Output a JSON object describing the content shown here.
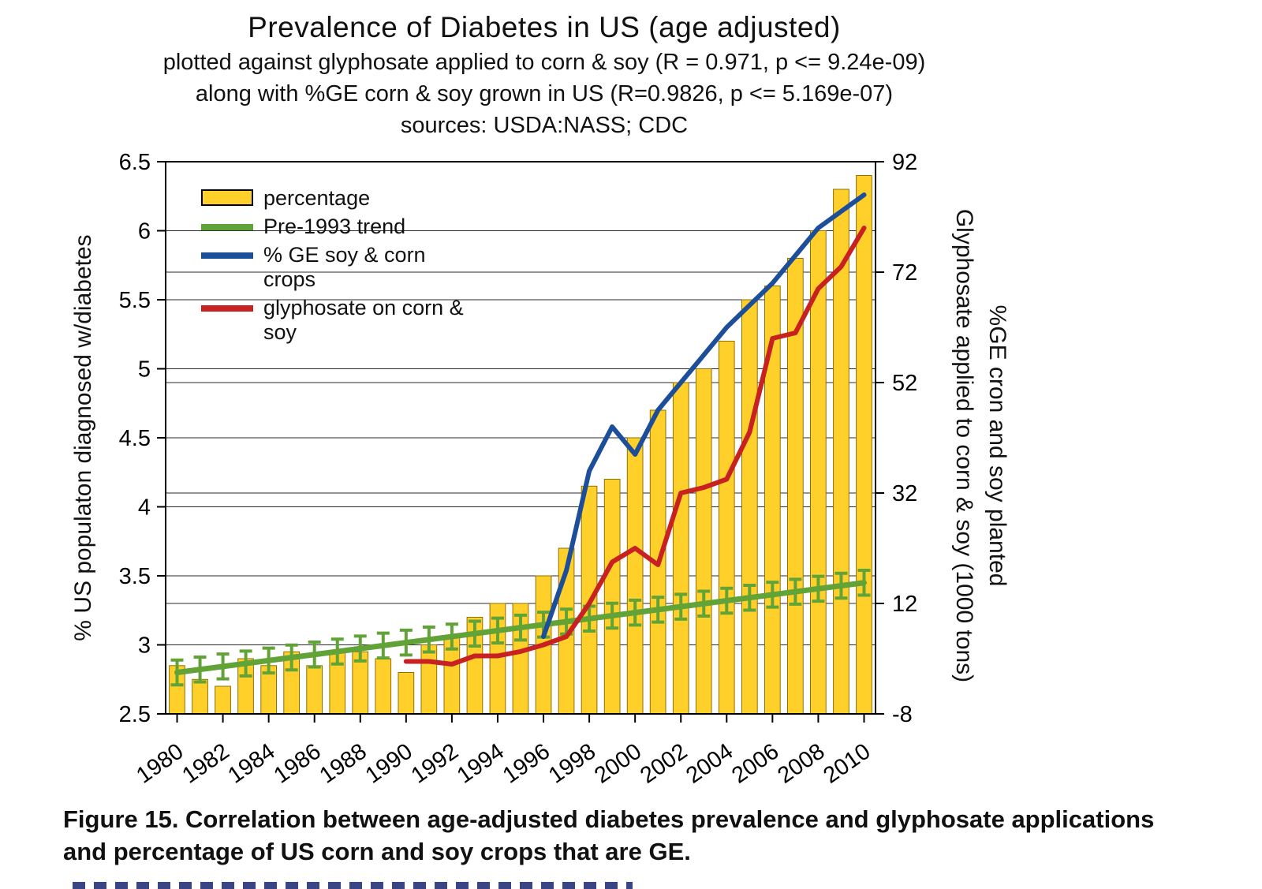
{
  "figure": {
    "title": "Prevalence of Diabetes in US (age adjusted)",
    "subtitle_line1": "plotted against glyphosate applied to corn & soy (R = 0.971, p <= 9.24e-09)",
    "subtitle_line2": "along with %GE corn & soy grown in US (R=0.9826, p <= 5.169e-07)",
    "subtitle_line3": "sources: USDA:NASS; CDC",
    "caption_line1": "Figure 15. Correlation between age-adjusted diabetes prevalence and glyphosate applications",
    "caption_line2": "and percentage of US corn and soy crops that are GE."
  },
  "axes": {
    "left_label": "% US populaton diagnosed w/diabetes",
    "right_label_outer": "Glyphosate applied to corn & soy (1000 tons)",
    "right_label_inner": "%GE cron and soy planted",
    "left_ticks": [
      "2.5",
      "3",
      "3.5",
      "4",
      "4.5",
      "5",
      "5.5",
      "6",
      "6.5"
    ],
    "right_ticks": [
      "-8",
      "12",
      "32",
      "52",
      "72",
      "92"
    ],
    "x_ticks": [
      "1980",
      "1982",
      "1984",
      "1986",
      "1988",
      "1990",
      "1992",
      "1994",
      "1996",
      "1998",
      "2000",
      "2002",
      "2004",
      "2006",
      "2008",
      "2010"
    ]
  },
  "legend": {
    "items": [
      {
        "label": "percentage",
        "swatch": "box",
        "color": "#FFD02A"
      },
      {
        "label": "Pre-1993 trend",
        "swatch": "line",
        "color": "#62A338"
      },
      {
        "label": "% GE soy & corn crops",
        "swatch": "line",
        "color": "#1C4E99"
      },
      {
        "label": "glyphosate on corn & soy",
        "swatch": "line",
        "color": "#C82121"
      }
    ]
  },
  "chart_data": {
    "type": "bar",
    "title": "Prevalence of Diabetes in US (age adjusted)",
    "sources": "USDA:NASS; CDC",
    "grid": true,
    "legend_position": "upper-left",
    "stats": [
      {
        "pair": "diabetes vs glyphosate applied to corn & soy",
        "R": 0.971,
        "p": "<= 9.24e-09"
      },
      {
        "pair": "diabetes vs %GE corn & soy grown in US",
        "R": 0.9826,
        "p": "<= 5.169e-07"
      }
    ],
    "left_axis": {
      "label": "% US populaton diagnosed w/diabetes",
      "ylim": [
        2.5,
        6.5
      ],
      "ticks": [
        2.5,
        3,
        3.5,
        4,
        4.5,
        5,
        5.5,
        6,
        6.5
      ]
    },
    "right_axis": {
      "label": "Glyphosate applied to corn & soy (1000 tons); %GE cron and soy planted",
      "ylim": [
        -8,
        92
      ],
      "ticks": [
        -8,
        12,
        32,
        52,
        72,
        92
      ]
    },
    "categories": [
      1980,
      1981,
      1982,
      1983,
      1984,
      1985,
      1986,
      1987,
      1988,
      1989,
      1990,
      1991,
      1992,
      1993,
      1994,
      1995,
      1996,
      1997,
      1998,
      1999,
      2000,
      2001,
      2002,
      2003,
      2004,
      2005,
      2006,
      2007,
      2008,
      2009,
      2010
    ],
    "series": [
      {
        "name": "percentage",
        "type": "bar",
        "axis": "left",
        "color": "#FFD02A",
        "values": [
          2.85,
          2.75,
          2.7,
          2.9,
          2.85,
          2.95,
          2.85,
          2.95,
          2.95,
          2.9,
          2.8,
          3.0,
          3.05,
          3.2,
          3.3,
          3.3,
          3.5,
          3.7,
          4.15,
          4.2,
          4.5,
          4.7,
          4.9,
          5.0,
          5.2,
          5.5,
          5.6,
          5.8,
          6.0,
          6.3,
          6.4
        ]
      },
      {
        "name": "Pre-1993 trend",
        "type": "line",
        "axis": "left",
        "color": "#62A338",
        "x": [
          1980,
          2010
        ],
        "values": [
          2.8,
          3.45
        ],
        "error_bar": 0.09,
        "error_bar_interval": "annual"
      },
      {
        "name": "% GE soy & corn crops",
        "type": "line",
        "axis": "right",
        "color": "#1C4E99",
        "x": [
          1996,
          1997,
          1998,
          1999,
          2000,
          2001,
          2002,
          2003,
          2004,
          2005,
          2006,
          2007,
          2008,
          2009,
          2010
        ],
        "values": [
          6,
          18,
          36,
          44,
          39,
          47,
          52,
          57,
          62,
          66,
          70,
          75,
          80,
          83,
          86
        ]
      },
      {
        "name": "glyphosate on corn & soy",
        "type": "line",
        "axis": "right",
        "color": "#C82121",
        "x": [
          1990,
          1991,
          1992,
          1993,
          1994,
          1995,
          1996,
          1997,
          1998,
          1999,
          2000,
          2001,
          2002,
          2003,
          2004,
          2005,
          2006,
          2007,
          2008,
          2009,
          2010
        ],
        "values": [
          1.5,
          1.5,
          1.0,
          2.5,
          2.5,
          3.3,
          4.5,
          6,
          12,
          19.5,
          22,
          19,
          32,
          33,
          34.5,
          43,
          60,
          61,
          69,
          73,
          80
        ]
      }
    ]
  }
}
